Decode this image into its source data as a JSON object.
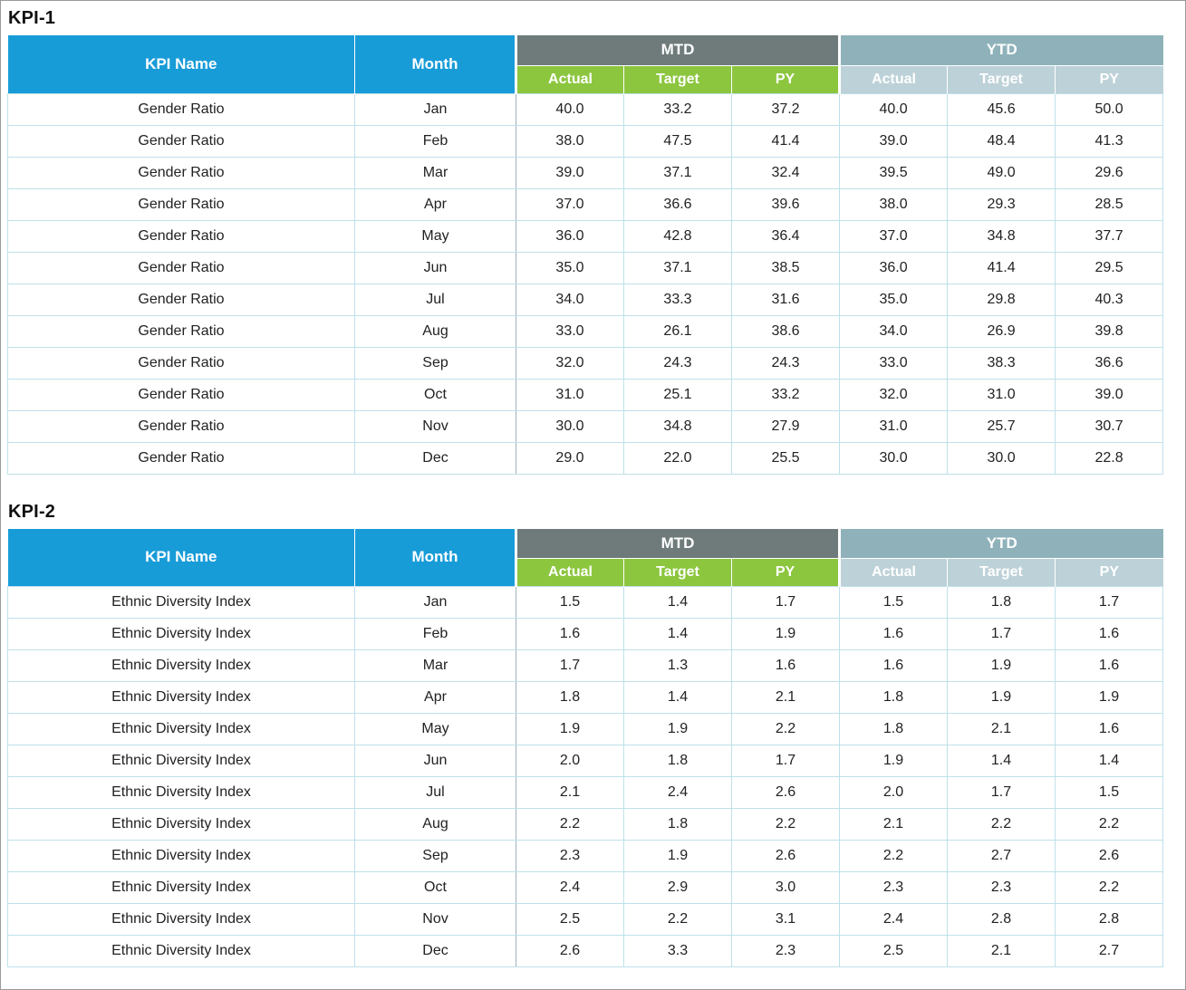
{
  "colors": {
    "header_blue": "#189CD8",
    "mtd_group_bg": "#6F7B7B",
    "mtd_sub_bg": "#8CC63F",
    "ytd_group_bg": "#8FB2BA",
    "ytd_sub_bg": "#BDD1D8",
    "grid_line": "#BFE0EA",
    "header_text": "#ffffff",
    "body_text": "#222222"
  },
  "tables": [
    {
      "title": "KPI-1",
      "headers": {
        "kpi_name": "KPI Name",
        "month": "Month",
        "mtd": "MTD",
        "ytd": "YTD",
        "mtd_sub": [
          "Actual",
          "Target",
          "PY"
        ],
        "ytd_sub": [
          "Actual",
          "Target",
          "PY"
        ]
      },
      "rows": [
        {
          "kpi": "Gender Ratio",
          "month": "Jan",
          "mtd": [
            "40.0",
            "33.2",
            "37.2"
          ],
          "ytd": [
            "40.0",
            "45.6",
            "50.0"
          ]
        },
        {
          "kpi": "Gender Ratio",
          "month": "Feb",
          "mtd": [
            "38.0",
            "47.5",
            "41.4"
          ],
          "ytd": [
            "39.0",
            "48.4",
            "41.3"
          ]
        },
        {
          "kpi": "Gender Ratio",
          "month": "Mar",
          "mtd": [
            "39.0",
            "37.1",
            "32.4"
          ],
          "ytd": [
            "39.5",
            "49.0",
            "29.6"
          ]
        },
        {
          "kpi": "Gender Ratio",
          "month": "Apr",
          "mtd": [
            "37.0",
            "36.6",
            "39.6"
          ],
          "ytd": [
            "38.0",
            "29.3",
            "28.5"
          ]
        },
        {
          "kpi": "Gender Ratio",
          "month": "May",
          "mtd": [
            "36.0",
            "42.8",
            "36.4"
          ],
          "ytd": [
            "37.0",
            "34.8",
            "37.7"
          ]
        },
        {
          "kpi": "Gender Ratio",
          "month": "Jun",
          "mtd": [
            "35.0",
            "37.1",
            "38.5"
          ],
          "ytd": [
            "36.0",
            "41.4",
            "29.5"
          ]
        },
        {
          "kpi": "Gender Ratio",
          "month": "Jul",
          "mtd": [
            "34.0",
            "33.3",
            "31.6"
          ],
          "ytd": [
            "35.0",
            "29.8",
            "40.3"
          ]
        },
        {
          "kpi": "Gender Ratio",
          "month": "Aug",
          "mtd": [
            "33.0",
            "26.1",
            "38.6"
          ],
          "ytd": [
            "34.0",
            "26.9",
            "39.8"
          ]
        },
        {
          "kpi": "Gender Ratio",
          "month": "Sep",
          "mtd": [
            "32.0",
            "24.3",
            "24.3"
          ],
          "ytd": [
            "33.0",
            "38.3",
            "36.6"
          ]
        },
        {
          "kpi": "Gender Ratio",
          "month": "Oct",
          "mtd": [
            "31.0",
            "25.1",
            "33.2"
          ],
          "ytd": [
            "32.0",
            "31.0",
            "39.0"
          ]
        },
        {
          "kpi": "Gender Ratio",
          "month": "Nov",
          "mtd": [
            "30.0",
            "34.8",
            "27.9"
          ],
          "ytd": [
            "31.0",
            "25.7",
            "30.7"
          ]
        },
        {
          "kpi": "Gender Ratio",
          "month": "Dec",
          "mtd": [
            "29.0",
            "22.0",
            "25.5"
          ],
          "ytd": [
            "30.0",
            "30.0",
            "22.8"
          ]
        }
      ]
    },
    {
      "title": "KPI-2",
      "headers": {
        "kpi_name": "KPI Name",
        "month": "Month",
        "mtd": "MTD",
        "ytd": "YTD",
        "mtd_sub": [
          "Actual",
          "Target",
          "PY"
        ],
        "ytd_sub": [
          "Actual",
          "Target",
          "PY"
        ]
      },
      "rows": [
        {
          "kpi": "Ethnic Diversity Index",
          "month": "Jan",
          "mtd": [
            "1.5",
            "1.4",
            "1.7"
          ],
          "ytd": [
            "1.5",
            "1.8",
            "1.7"
          ]
        },
        {
          "kpi": "Ethnic Diversity Index",
          "month": "Feb",
          "mtd": [
            "1.6",
            "1.4",
            "1.9"
          ],
          "ytd": [
            "1.6",
            "1.7",
            "1.6"
          ]
        },
        {
          "kpi": "Ethnic Diversity Index",
          "month": "Mar",
          "mtd": [
            "1.7",
            "1.3",
            "1.6"
          ],
          "ytd": [
            "1.6",
            "1.9",
            "1.6"
          ]
        },
        {
          "kpi": "Ethnic Diversity Index",
          "month": "Apr",
          "mtd": [
            "1.8",
            "1.4",
            "2.1"
          ],
          "ytd": [
            "1.8",
            "1.9",
            "1.9"
          ]
        },
        {
          "kpi": "Ethnic Diversity Index",
          "month": "May",
          "mtd": [
            "1.9",
            "1.9",
            "2.2"
          ],
          "ytd": [
            "1.8",
            "2.1",
            "1.6"
          ]
        },
        {
          "kpi": "Ethnic Diversity Index",
          "month": "Jun",
          "mtd": [
            "2.0",
            "1.8",
            "1.7"
          ],
          "ytd": [
            "1.9",
            "1.4",
            "1.4"
          ]
        },
        {
          "kpi": "Ethnic Diversity Index",
          "month": "Jul",
          "mtd": [
            "2.1",
            "2.4",
            "2.6"
          ],
          "ytd": [
            "2.0",
            "1.7",
            "1.5"
          ]
        },
        {
          "kpi": "Ethnic Diversity Index",
          "month": "Aug",
          "mtd": [
            "2.2",
            "1.8",
            "2.2"
          ],
          "ytd": [
            "2.1",
            "2.2",
            "2.2"
          ]
        },
        {
          "kpi": "Ethnic Diversity Index",
          "month": "Sep",
          "mtd": [
            "2.3",
            "1.9",
            "2.6"
          ],
          "ytd": [
            "2.2",
            "2.7",
            "2.6"
          ]
        },
        {
          "kpi": "Ethnic Diversity Index",
          "month": "Oct",
          "mtd": [
            "2.4",
            "2.9",
            "3.0"
          ],
          "ytd": [
            "2.3",
            "2.3",
            "2.2"
          ]
        },
        {
          "kpi": "Ethnic Diversity Index",
          "month": "Nov",
          "mtd": [
            "2.5",
            "2.2",
            "3.1"
          ],
          "ytd": [
            "2.4",
            "2.8",
            "2.8"
          ]
        },
        {
          "kpi": "Ethnic Diversity Index",
          "month": "Dec",
          "mtd": [
            "2.6",
            "3.3",
            "2.3"
          ],
          "ytd": [
            "2.5",
            "2.1",
            "2.7"
          ]
        }
      ]
    }
  ]
}
